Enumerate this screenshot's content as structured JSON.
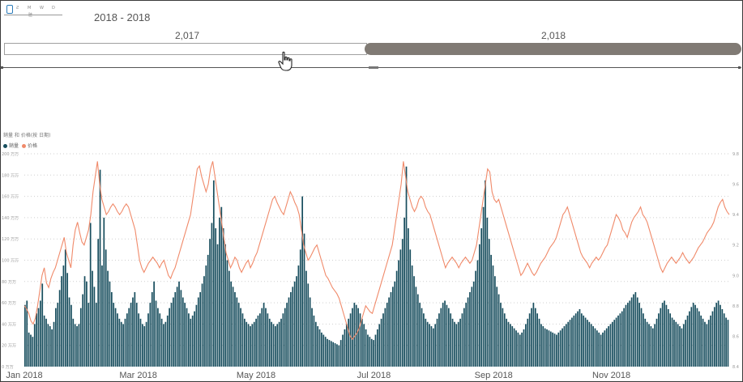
{
  "slicer": {
    "mini_labels": [
      "Ƨ",
      "M",
      "W",
      "D"
    ],
    "mini_sub": "䐍",
    "range_title": "2018 - 2018",
    "years": [
      {
        "label": "2,017",
        "selected": false
      },
      {
        "label": "2,018",
        "selected": true
      }
    ],
    "colors": {
      "selected": "#807a74",
      "unselected": "#ffffff"
    }
  },
  "chart_data": {
    "type": "bar+line",
    "title": "銷量 和 价格(按 日期)",
    "legend": [
      {
        "name": "銷量",
        "color": "#184e5e"
      },
      {
        "name": "价格",
        "color": "#f08a6a"
      }
    ],
    "y_left": {
      "min": 0,
      "max": 200,
      "unit": "万",
      "ticks": [
        "0 万万",
        "20 万万",
        "40 万万",
        "60 万万",
        "80 万万",
        "100 万万",
        "120 万万",
        "140 万万",
        "160 万万",
        "180 万万",
        "200 万万"
      ]
    },
    "y_right": {
      "min": 8.4,
      "max": 9.8,
      "ticks": [
        "8.4",
        "8.6",
        "8.8",
        "9.0",
        "9.2",
        "9.4",
        "9.6",
        "9.8"
      ]
    },
    "x_ticks": [
      "Jan 2018",
      "Mar 2018",
      "May 2018",
      "Jul 2018",
      "Sep 2018",
      "Nov 2018"
    ],
    "x_range_days": [
      0,
      365
    ],
    "bar_series": {
      "name": "銷量",
      "values": [
        58,
        62,
        32,
        30,
        28,
        40,
        50,
        55,
        62,
        78,
        48,
        45,
        40,
        38,
        35,
        42,
        55,
        60,
        72,
        85,
        95,
        110,
        88,
        65,
        58,
        45,
        40,
        38,
        40,
        55,
        68,
        85,
        80,
        60,
        135,
        90,
        75,
        60,
        120,
        185,
        95,
        140,
        110,
        90,
        80,
        70,
        60,
        55,
        50,
        45,
        42,
        40,
        45,
        50,
        55,
        60,
        65,
        70,
        60,
        50,
        45,
        40,
        38,
        42,
        50,
        60,
        70,
        80,
        62,
        55,
        50,
        45,
        40,
        42,
        48,
        55,
        60,
        65,
        70,
        75,
        80,
        72,
        65,
        60,
        55,
        50,
        45,
        48,
        52,
        58,
        65,
        70,
        78,
        85,
        95,
        105,
        120,
        135,
        175,
        130,
        115,
        140,
        150,
        130,
        115,
        100,
        90,
        80,
        75,
        70,
        65,
        60,
        55,
        50,
        45,
        42,
        40,
        38,
        40,
        42,
        45,
        48,
        50,
        55,
        60,
        55,
        50,
        45,
        42,
        40,
        38,
        40,
        42,
        45,
        50,
        55,
        60,
        65,
        70,
        75,
        80,
        85,
        95,
        110,
        160,
        125,
        90,
        78,
        65,
        55,
        48,
        42,
        38,
        35,
        32,
        30,
        28,
        26,
        25,
        24,
        23,
        22,
        21,
        20,
        25,
        30,
        35,
        40,
        45,
        50,
        55,
        60,
        58,
        55,
        50,
        45,
        40,
        35,
        30,
        28,
        26,
        25,
        30,
        35,
        40,
        45,
        50,
        55,
        60,
        65,
        70,
        75,
        80,
        90,
        100,
        110,
        120,
        140,
        188,
        130,
        110,
        95,
        85,
        75,
        68,
        60,
        55,
        50,
        45,
        42,
        40,
        38,
        36,
        40,
        45,
        50,
        55,
        60,
        62,
        58,
        55,
        50,
        45,
        42,
        40,
        42,
        45,
        50,
        55,
        60,
        65,
        70,
        75,
        80,
        90,
        100,
        115,
        130,
        150,
        175,
        140,
        120,
        105,
        95,
        85,
        75,
        68,
        60,
        55,
        50,
        45,
        42,
        40,
        38,
        36,
        34,
        32,
        30,
        32,
        35,
        40,
        45,
        50,
        55,
        60,
        55,
        50,
        45,
        40,
        38,
        36,
        35,
        34,
        33,
        32,
        31,
        30,
        32,
        34,
        36,
        38,
        40,
        42,
        44,
        46,
        48,
        50,
        52,
        54,
        50,
        48,
        46,
        44,
        42,
        40,
        38,
        36,
        34,
        32,
        30,
        32,
        34,
        36,
        38,
        40,
        42,
        44,
        46,
        48,
        50,
        52,
        55,
        58,
        60,
        62,
        65,
        68,
        70,
        65,
        60,
        55,
        50,
        45,
        42,
        40,
        38,
        36,
        40,
        45,
        50,
        55,
        60,
        62,
        58,
        54,
        50,
        46,
        44,
        42,
        40,
        38,
        36,
        40,
        44,
        48,
        52,
        56,
        60,
        58,
        55,
        52,
        48,
        45,
        42,
        40,
        44,
        48,
        52,
        56,
        60,
        62,
        58,
        54,
        50,
        46,
        44
      ],
      "color": "#184e5e"
    },
    "line_series": {
      "name": "价格",
      "values": [
        8.8,
        8.78,
        8.75,
        8.7,
        8.68,
        8.72,
        8.8,
        8.9,
        9.0,
        9.05,
        8.95,
        8.92,
        8.98,
        9.02,
        9.05,
        9.1,
        9.15,
        9.2,
        9.25,
        9.15,
        9.1,
        9.05,
        9.2,
        9.3,
        9.35,
        9.28,
        9.22,
        9.2,
        9.25,
        9.3,
        9.4,
        9.55,
        9.65,
        9.75,
        9.6,
        9.5,
        9.45,
        9.4,
        9.42,
        9.45,
        9.47,
        9.45,
        9.42,
        9.4,
        9.42,
        9.45,
        9.47,
        9.45,
        9.4,
        9.35,
        9.3,
        9.2,
        9.1,
        9.05,
        9.02,
        9.05,
        9.08,
        9.1,
        9.12,
        9.1,
        9.08,
        9.05,
        9.08,
        9.1,
        9.05,
        9.0,
        8.98,
        9.02,
        9.05,
        9.1,
        9.15,
        9.2,
        9.25,
        9.3,
        9.35,
        9.4,
        9.5,
        9.6,
        9.7,
        9.72,
        9.65,
        9.6,
        9.55,
        9.6,
        9.7,
        9.75,
        9.65,
        9.55,
        9.45,
        9.35,
        9.25,
        9.15,
        9.1,
        9.05,
        9.08,
        9.12,
        9.1,
        9.05,
        9.02,
        9.05,
        9.08,
        9.1,
        9.05,
        9.08,
        9.12,
        9.15,
        9.2,
        9.25,
        9.3,
        9.35,
        9.4,
        9.45,
        9.5,
        9.52,
        9.48,
        9.45,
        9.42,
        9.4,
        9.45,
        9.5,
        9.55,
        9.52,
        9.48,
        9.45,
        9.4,
        9.3,
        9.2,
        9.15,
        9.1,
        9.12,
        9.15,
        9.18,
        9.2,
        9.15,
        9.1,
        9.05,
        9.0,
        8.98,
        8.95,
        8.92,
        8.9,
        8.88,
        8.85,
        8.8,
        8.75,
        8.7,
        8.65,
        8.6,
        8.58,
        8.6,
        8.62,
        8.65,
        8.7,
        8.75,
        8.8,
        8.78,
        8.76,
        8.75,
        8.8,
        8.85,
        8.9,
        8.95,
        9.0,
        9.05,
        9.1,
        9.15,
        9.2,
        9.3,
        9.4,
        9.5,
        9.6,
        9.75,
        9.65,
        9.55,
        9.5,
        9.45,
        9.42,
        9.45,
        9.5,
        9.52,
        9.5,
        9.45,
        9.42,
        9.4,
        9.35,
        9.3,
        9.25,
        9.2,
        9.15,
        9.1,
        9.05,
        9.08,
        9.1,
        9.12,
        9.1,
        9.08,
        9.05,
        9.08,
        9.1,
        9.12,
        9.1,
        9.08,
        9.1,
        9.15,
        9.2,
        9.3,
        9.4,
        9.5,
        9.6,
        9.7,
        9.68,
        9.55,
        9.5,
        9.48,
        9.5,
        9.45,
        9.4,
        9.35,
        9.3,
        9.25,
        9.2,
        9.15,
        9.1,
        9.05,
        9.0,
        9.02,
        9.05,
        9.08,
        9.05,
        9.02,
        9.0,
        9.02,
        9.05,
        9.08,
        9.1,
        9.12,
        9.15,
        9.18,
        9.2,
        9.22,
        9.25,
        9.3,
        9.35,
        9.4,
        9.42,
        9.45,
        9.4,
        9.35,
        9.3,
        9.25,
        9.2,
        9.15,
        9.12,
        9.1,
        9.08,
        9.05,
        9.08,
        9.1,
        9.12,
        9.1,
        9.12,
        9.15,
        9.18,
        9.2,
        9.25,
        9.3,
        9.35,
        9.4,
        9.38,
        9.35,
        9.3,
        9.28,
        9.25,
        9.3,
        9.35,
        9.38,
        9.4,
        9.42,
        9.45,
        9.4,
        9.38,
        9.35,
        9.3,
        9.25,
        9.2,
        9.15,
        9.1,
        9.05,
        9.02,
        9.05,
        9.08,
        9.1,
        9.12,
        9.1,
        9.08,
        9.1,
        9.12,
        9.15,
        9.12,
        9.1,
        9.08,
        9.1,
        9.12,
        9.15,
        9.18,
        9.2,
        9.22,
        9.25,
        9.28,
        9.3,
        9.32,
        9.35,
        9.4,
        9.45,
        9.48,
        9.5,
        9.45,
        9.42,
        9.4
      ],
      "color": "#f08a6a"
    },
    "grid": true
  }
}
